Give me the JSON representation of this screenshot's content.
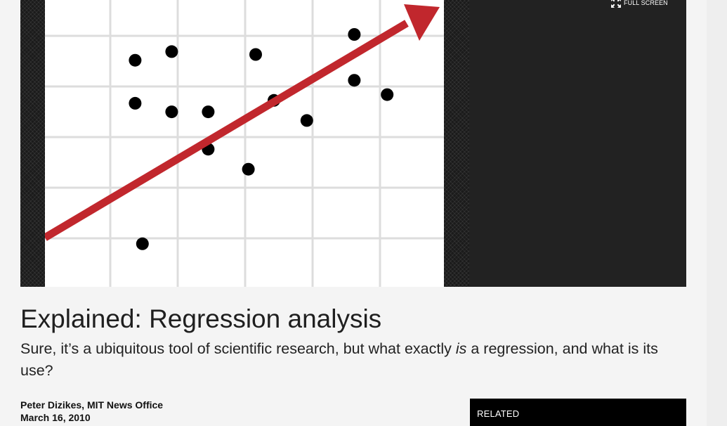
{
  "media": {
    "fullscreen_label": "FULL SCREEN",
    "fullscreen_icon": "expand-arrows-icon",
    "illustration": {
      "arrow_color": "#c1272d",
      "dot_color": "#000000",
      "grid_color": "#dddddd",
      "points": [
        {
          "x": 0.17,
          "y": 0.64
        },
        {
          "x": 0.17,
          "y": 0.79
        },
        {
          "x": 0.27,
          "y": 0.82
        },
        {
          "x": 0.27,
          "y": 0.61
        },
        {
          "x": 0.37,
          "y": 0.61
        },
        {
          "x": 0.37,
          "y": 0.48
        },
        {
          "x": 0.48,
          "y": 0.41
        },
        {
          "x": 0.5,
          "y": 0.81
        },
        {
          "x": 0.55,
          "y": 0.65
        },
        {
          "x": 0.64,
          "y": 0.58
        },
        {
          "x": 0.77,
          "y": 0.72
        },
        {
          "x": 0.77,
          "y": 0.88
        },
        {
          "x": 0.86,
          "y": 0.67
        },
        {
          "x": 0.19,
          "y": 0.15
        }
      ]
    }
  },
  "article": {
    "title": "Explained: Regression analysis",
    "dek_before": "Sure, it’s a ubiquitous tool of scientific research, but what exactly ",
    "dek_emphasis": "is",
    "dek_after": " a regression, and what is its use?",
    "author": "Peter Dizikes, MIT News Office",
    "date": "March 16, 2010"
  },
  "sidebar": {
    "related_label": "RELATED"
  },
  "colors": {
    "page_background": "#f4f4f4",
    "media_background": "#222222",
    "related_background": "#000000"
  }
}
